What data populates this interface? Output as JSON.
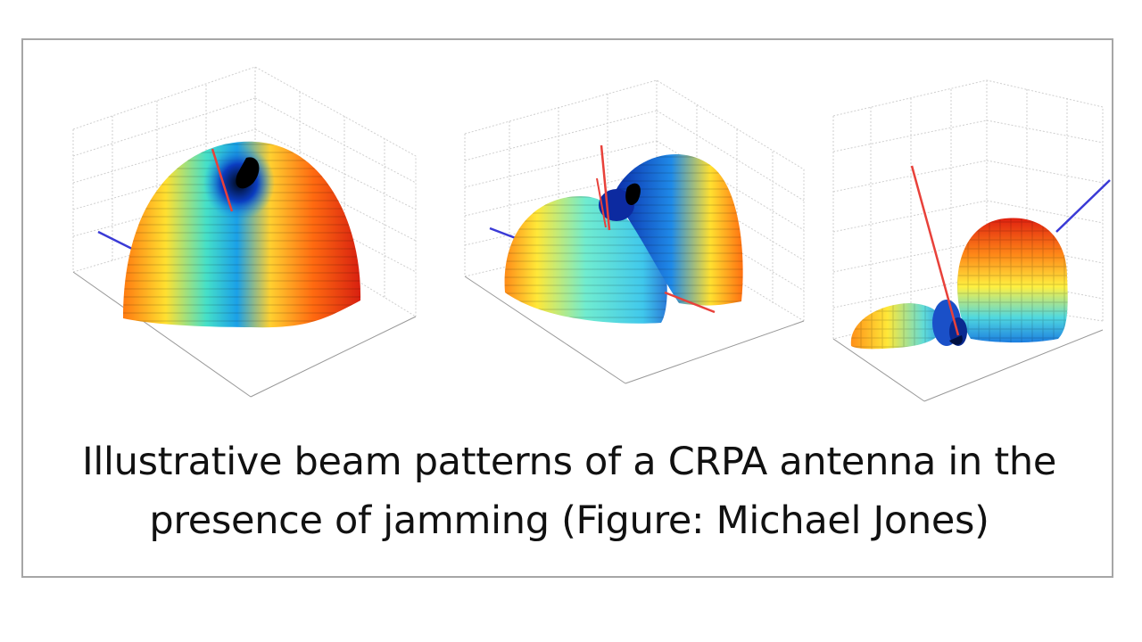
{
  "caption": {
    "line1": "Illustrative beam patterns of a CRPA antenna in the",
    "line2": "presence of jamming (Figure: Michael Jones)"
  },
  "figures": [
    {
      "id": "plot-1",
      "shape": "single dome with one null"
    },
    {
      "id": "plot-2",
      "shape": "two lobes with central null"
    },
    {
      "id": "plot-3",
      "shape": "two lobes of unequal size"
    }
  ],
  "colors": {
    "frame_border": "#a6a6a6",
    "pointer_red": "#e8413a",
    "pointer_blue": "#3a3ad6",
    "grid": "#c8c8c8"
  }
}
